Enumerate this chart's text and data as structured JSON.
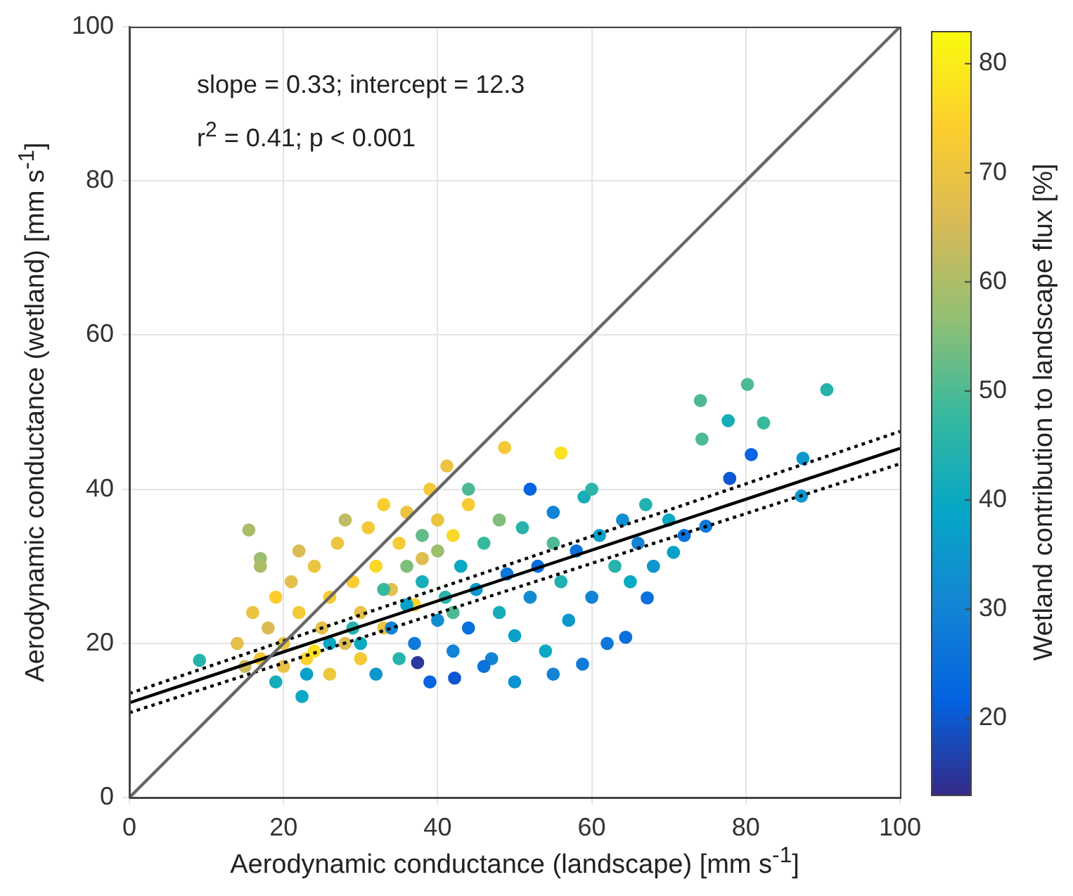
{
  "chart_data": {
    "type": "scatter",
    "xlabel": "Aerodynamic conductance (landscape) [mm s$^{-1}$]",
    "ylabel": "Aerodynamic conductance (wetland) [mm s$^{-1}$]",
    "clabel": "Wetland contribution to landscape flux [%]",
    "annotations": [
      "slope = 0.33; intercept = 12.3",
      "r$^{2}$ = 0.41; p < 0.001"
    ],
    "xlim": [
      0,
      100
    ],
    "xticks": [
      0,
      20,
      40,
      60,
      80,
      100
    ],
    "ylim": [
      0,
      100
    ],
    "yticks": [
      0,
      20,
      40,
      60,
      80,
      100
    ],
    "clim": [
      13,
      83
    ],
    "cticks": [
      20,
      30,
      40,
      50,
      60,
      70,
      80
    ],
    "grid": true,
    "legend": false,
    "series": [
      {
        "type": "scatter",
        "marker": "circle",
        "colors": [
          "#acbd68",
          "#27b3ac",
          "#9cbe6f",
          "#f3c938",
          "#fbe120",
          "#ebc441",
          "#0aa9c3",
          "#0d58cf",
          "#2a379c",
          "#4dba94",
          "#27b3ac",
          "#4dba94",
          "#16adb9",
          "#38b99e",
          "#4dba94",
          "#0464e1",
          "#0d97cd",
          "#0d97cd",
          "#0d58cf",
          "#0f7bd8",
          "#0970dc",
          "#0970dc",
          "#08a2c8",
          "#0f7bd8",
          "#e3c04b",
          "#ebc441",
          "#f3c938",
          "#dbbb54",
          "#fbcd2f",
          "#ebc441",
          "#e3c04b",
          "#f3c938",
          "#fcd22b",
          "#ebc441",
          "#e3c04b",
          "#f7cb34",
          "#ebc441",
          "#dbbb54",
          "#fbcd2f",
          "#e7c246",
          "#f3c938",
          "#fbd728",
          "#ebc441",
          "#e3c04b",
          "#f7cb34",
          "#ebc441",
          "#fcd22b",
          "#dfbd4f",
          "#f3c938",
          "#ebc441",
          "#bdbc62",
          "#acbd68",
          "#dbbb54",
          "#cdbb5b",
          "#fbcd2f",
          "#efc73d",
          "#fbd728",
          "#f7cb34",
          "#fbe120",
          "#f3c938",
          "#e7c246",
          "#0aa9c3",
          "#0d97cd",
          "#1383d5",
          "#27b3ac",
          "#08a2c8",
          "#0f7bd8",
          "#16adb9",
          "#0464e1",
          "#108fd0",
          "#27b3ac",
          "#1383d5",
          "#0aa9c3",
          "#0970dc",
          "#0d97cd",
          "#38b99e",
          "#1383d5",
          "#16adb9",
          "#0d77d9",
          "#08a2c8",
          "#27b3ac",
          "#128bd2",
          "#076cde",
          "#0aa9c3",
          "#1383d5",
          "#21b1b0",
          "#0d97cd",
          "#0970dc",
          "#16adb9",
          "#1383d5",
          "#08a2c8",
          "#0d77d9",
          "#27b3ac",
          "#108fd0",
          "#0aa9c3",
          "#1383d5",
          "#21b1b0",
          "#0d97cd",
          "#0aa9c3",
          "#0b74db",
          "#4dba94",
          "#0b74db",
          "#0e93ce",
          "#0464e1",
          "#1383d5",
          "#2db5a7",
          "#80be7c",
          "#9cbe6f",
          "#61bc8a",
          "#4dba94",
          "#38b99e",
          "#80be7c",
          "#4dba94",
          "#27b3ac",
          "#0aa9c3",
          "#08a2c8",
          "#16adb9"
        ],
        "x": [
          15.5,
          9.1,
          17,
          48.7,
          56,
          41.2,
          22.4,
          42.2,
          37.4,
          80.2,
          90.5,
          74.1,
          77.7,
          82.3,
          74.3,
          80.7,
          87.4,
          87.2,
          77.9,
          58.8,
          64.4,
          67.2,
          70.6,
          74.8,
          14,
          16,
          17,
          18,
          19,
          20,
          21,
          22,
          23,
          24,
          25,
          26,
          27,
          28,
          29,
          30,
          31,
          32,
          33,
          34,
          35,
          36,
          37,
          38,
          39,
          40,
          28,
          17,
          22,
          15,
          33,
          26,
          42,
          44,
          24,
          30,
          20,
          30,
          32,
          34,
          35,
          36,
          37,
          38,
          39,
          40,
          41,
          42,
          43,
          44,
          45,
          46,
          47,
          48,
          49,
          50,
          51,
          52,
          53,
          54,
          55,
          56,
          57,
          58,
          59,
          60,
          61,
          62,
          63,
          64,
          65,
          66,
          67,
          68,
          70,
          72,
          44,
          46,
          50,
          52,
          55,
          60,
          48,
          40,
          38,
          55,
          33,
          36,
          42,
          29,
          26,
          23,
          19
        ],
        "values": [
          34.7,
          17.8,
          31,
          45.4,
          44.7,
          43,
          13.1,
          15.5,
          17.5,
          53.6,
          52.9,
          51.5,
          48.9,
          48.6,
          46.5,
          44.5,
          44,
          39.1,
          41.4,
          17.3,
          20.8,
          25.9,
          31.8,
          35.2,
          20,
          24,
          18,
          22,
          26,
          20,
          28,
          24,
          18,
          30,
          22,
          26,
          33,
          20,
          28,
          24,
          35,
          30,
          22,
          27,
          33,
          37,
          25,
          31,
          40,
          36,
          36,
          30,
          32,
          17,
          38,
          16,
          34,
          38,
          19,
          18,
          17,
          20,
          16,
          22,
          18,
          25,
          20,
          28,
          15,
          23,
          26,
          19,
          30,
          22,
          27,
          33,
          18,
          24,
          29,
          21,
          35,
          26,
          30,
          19,
          37,
          28,
          23,
          32,
          39,
          26,
          34,
          20,
          30,
          36,
          28,
          33,
          38,
          30,
          36,
          34,
          40,
          17,
          15,
          40,
          16,
          40,
          36,
          32,
          34,
          33,
          27,
          30,
          24,
          22,
          20,
          16,
          15
        ],
        "cvalues": [
          60,
          45,
          58,
          72,
          78,
          70,
          40,
          20,
          15,
          50,
          45,
          50,
          42,
          48,
          50,
          22,
          35,
          35,
          20,
          28,
          25,
          25,
          38,
          28,
          68,
          70,
          72,
          66,
          74,
          70,
          68,
          72,
          75,
          70,
          68,
          73,
          70,
          66,
          74,
          69,
          72,
          76,
          70,
          68,
          73,
          70,
          75,
          67,
          72,
          70,
          62,
          60,
          66,
          64,
          74,
          71,
          76,
          73,
          78,
          72,
          69,
          40,
          35,
          30,
          45,
          38,
          28,
          42,
          22,
          33,
          45,
          30,
          40,
          25,
          35,
          48,
          30,
          42,
          27,
          38,
          45,
          32,
          24,
          40,
          30,
          44,
          35,
          25,
          42,
          30,
          38,
          27,
          45,
          33,
          40,
          30,
          44,
          35,
          40,
          26,
          50,
          26,
          34,
          22,
          30,
          46,
          55,
          58,
          52,
          50,
          48,
          55,
          50,
          45,
          40,
          38,
          42
        ]
      },
      {
        "type": "line",
        "color": "#666666",
        "line_style": "solid",
        "marker": "none",
        "x": [
          0,
          100
        ],
        "values": [
          0,
          100
        ]
      },
      {
        "type": "line",
        "color": "#000000",
        "line_style": "solid",
        "marker": "none",
        "x": [
          0,
          100
        ],
        "values": [
          12.3,
          45.3
        ]
      },
      {
        "type": "line",
        "color": "#000000",
        "line_style": "dotted",
        "marker": "none",
        "x": [
          0,
          100
        ],
        "values": [
          13.5,
          47.5
        ]
      },
      {
        "type": "line",
        "color": "#000000",
        "line_style": "dotted",
        "marker": "none",
        "x": [
          0,
          100
        ],
        "values": [
          11,
          43.3
        ]
      }
    ]
  }
}
